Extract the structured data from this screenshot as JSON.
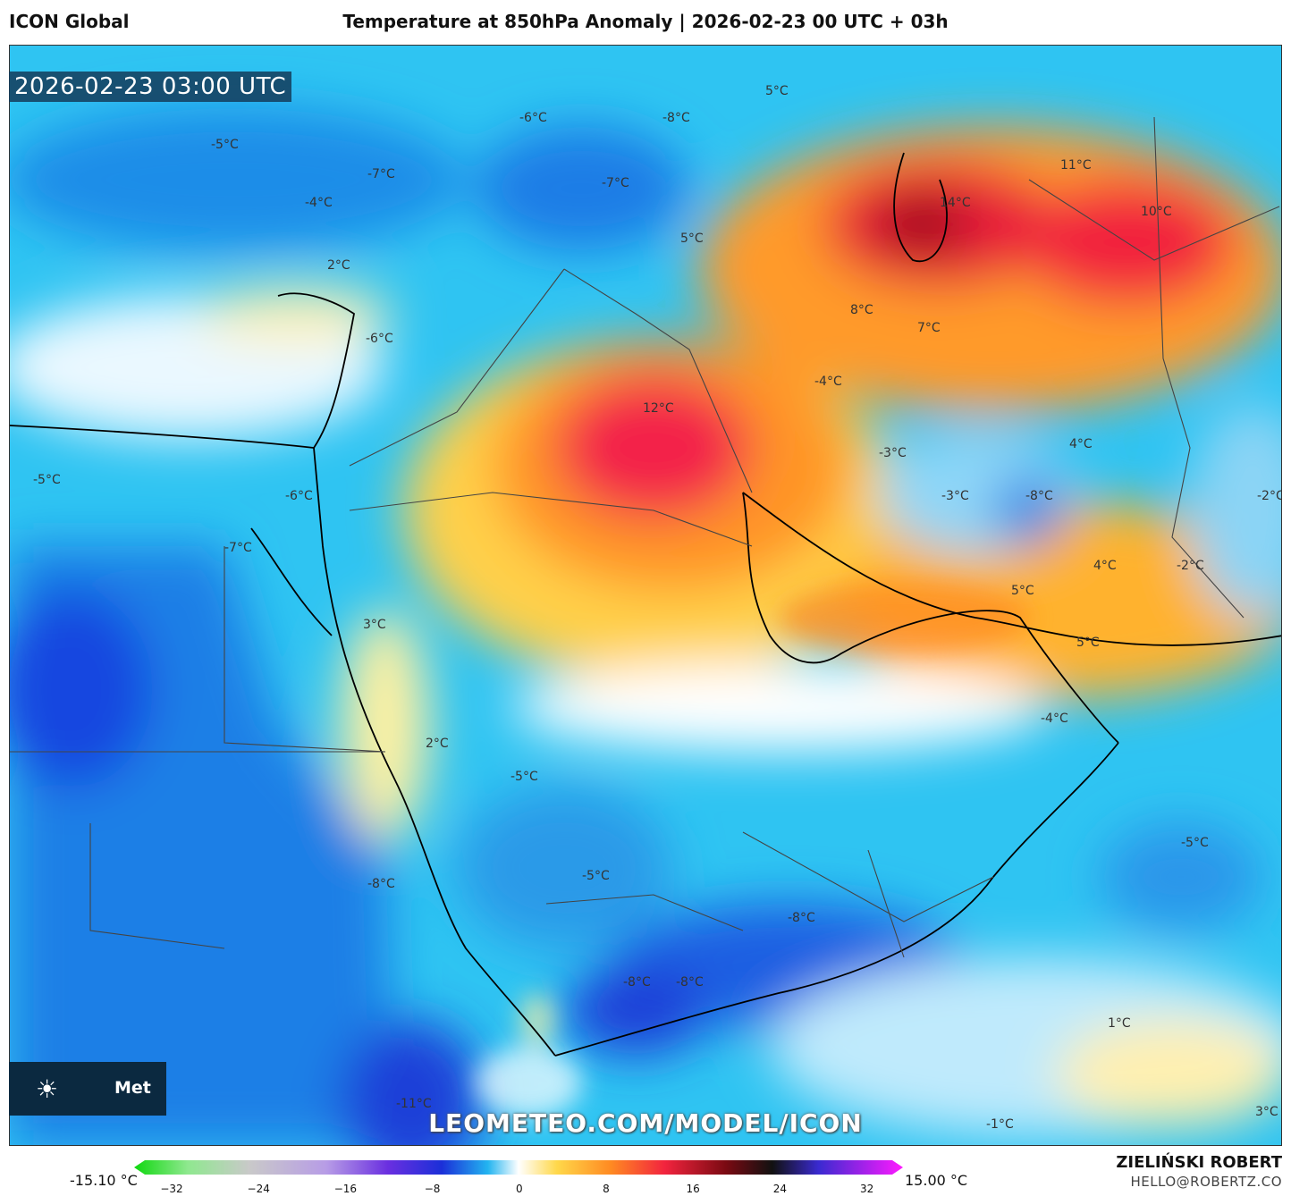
{
  "header": {
    "model": "ICON Global",
    "title": "Temperature at 850hPa Anomaly | 2026-02-23 00 UTC + 03h"
  },
  "map": {
    "timestamp": "2026-02-23 03:00 UTC",
    "watermark": "LEOMETEO.COM/MODEL/ICON",
    "logo_text": "Met",
    "logo_icon": "sun-icon",
    "labels": [
      {
        "text": "5°C"
      },
      {
        "text": "-6°C"
      },
      {
        "text": "-8°C"
      },
      {
        "text": "-5°C"
      },
      {
        "text": "-7°C"
      },
      {
        "text": "-4°C"
      },
      {
        "text": "-7°C"
      },
      {
        "text": "2°C"
      },
      {
        "text": "5°C"
      },
      {
        "text": "14°C"
      },
      {
        "text": "11°C"
      },
      {
        "text": "10°C"
      },
      {
        "text": "8°C"
      },
      {
        "text": "7°C"
      },
      {
        "text": "-6°C"
      },
      {
        "text": "-4°C"
      },
      {
        "text": "12°C"
      },
      {
        "text": "-3°C"
      },
      {
        "text": "4°C"
      },
      {
        "text": "-5°C"
      },
      {
        "text": "-6°C"
      },
      {
        "text": "-3°C"
      },
      {
        "text": "-8°C"
      },
      {
        "text": "-2°C"
      },
      {
        "text": "-7°C"
      },
      {
        "text": "4°C"
      },
      {
        "text": "-2°C"
      },
      {
        "text": "5°C"
      },
      {
        "text": "3°C"
      },
      {
        "text": "5°C"
      },
      {
        "text": "-4°C"
      },
      {
        "text": "2°C"
      },
      {
        "text": "-5°C"
      },
      {
        "text": "-5°C"
      },
      {
        "text": "-8°C"
      },
      {
        "text": "-5°C"
      },
      {
        "text": "-8°C"
      },
      {
        "text": "-8°C"
      },
      {
        "text": "-8°C"
      },
      {
        "text": "1°C"
      },
      {
        "text": "-11°C"
      },
      {
        "text": "-1°C"
      },
      {
        "text": "3°C"
      }
    ]
  },
  "legend": {
    "min_label": "-15.10 °C",
    "max_label": "15.00 °C",
    "ticks": [
      "−32",
      "−24",
      "−16",
      "−8",
      "0",
      "8",
      "16",
      "24",
      "32"
    ]
  },
  "credits": {
    "author": "ZIELIŃSKI ROBERT",
    "email": "HELLO@ROBERTZ.CO"
  }
}
